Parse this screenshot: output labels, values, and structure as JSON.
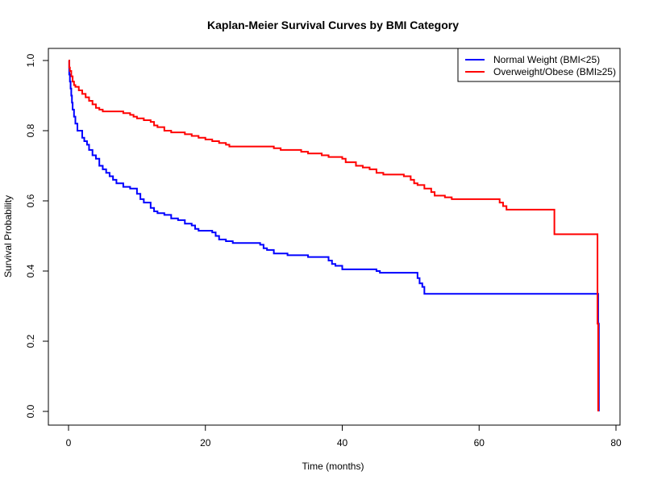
{
  "chart_data": {
    "type": "line",
    "step": true,
    "title": "Kaplan-Meier Survival Curves by BMI Category",
    "xlabel": "Time (months)",
    "ylabel": "Survival Probability",
    "xlim": [
      0,
      80
    ],
    "ylim": [
      0,
      1
    ],
    "x_ticks": [
      "0",
      "20",
      "40",
      "60",
      "80"
    ],
    "y_ticks": [
      "0.0",
      "0.2",
      "0.4",
      "0.6",
      "0.8",
      "1.0"
    ],
    "grid": false,
    "legend_position": "top-right",
    "series": [
      {
        "name": "Normal Weight (BMI<25)",
        "color": "#0000ff",
        "points": [
          [
            0,
            1.0
          ],
          [
            0.1,
            0.96
          ],
          [
            0.2,
            0.94
          ],
          [
            0.3,
            0.92
          ],
          [
            0.4,
            0.9
          ],
          [
            0.5,
            0.88
          ],
          [
            0.6,
            0.86
          ],
          [
            0.8,
            0.84
          ],
          [
            1,
            0.82
          ],
          [
            1.3,
            0.8
          ],
          [
            2,
            0.78
          ],
          [
            2.3,
            0.77
          ],
          [
            2.7,
            0.76
          ],
          [
            3,
            0.745
          ],
          [
            3.5,
            0.73
          ],
          [
            4,
            0.72
          ],
          [
            4.5,
            0.7
          ],
          [
            5,
            0.69
          ],
          [
            5.5,
            0.68
          ],
          [
            6,
            0.67
          ],
          [
            6.5,
            0.66
          ],
          [
            7,
            0.65
          ],
          [
            8,
            0.64
          ],
          [
            9,
            0.635
          ],
          [
            10,
            0.62
          ],
          [
            10.5,
            0.605
          ],
          [
            11,
            0.595
          ],
          [
            12,
            0.58
          ],
          [
            12.5,
            0.57
          ],
          [
            13,
            0.565
          ],
          [
            14,
            0.56
          ],
          [
            15,
            0.55
          ],
          [
            16,
            0.545
          ],
          [
            17,
            0.535
          ],
          [
            18,
            0.53
          ],
          [
            18.5,
            0.52
          ],
          [
            19,
            0.515
          ],
          [
            21,
            0.51
          ],
          [
            21.5,
            0.5
          ],
          [
            22,
            0.49
          ],
          [
            23,
            0.485
          ],
          [
            24,
            0.48
          ],
          [
            28,
            0.475
          ],
          [
            28.5,
            0.465
          ],
          [
            29,
            0.46
          ],
          [
            30,
            0.45
          ],
          [
            32,
            0.445
          ],
          [
            35,
            0.44
          ],
          [
            38,
            0.43
          ],
          [
            38.5,
            0.42
          ],
          [
            39,
            0.415
          ],
          [
            40,
            0.405
          ],
          [
            45,
            0.4
          ],
          [
            45.5,
            0.395
          ],
          [
            51,
            0.38
          ],
          [
            51.3,
            0.365
          ],
          [
            51.7,
            0.355
          ],
          [
            52,
            0.335
          ],
          [
            77.3,
            0.335
          ],
          [
            77.4,
            0.25
          ],
          [
            77.5,
            0.0
          ]
        ]
      },
      {
        "name": "Overweight/Obese (BMI≥25)",
        "color": "#ff0000",
        "points": [
          [
            0,
            1.0
          ],
          [
            0.1,
            0.98
          ],
          [
            0.2,
            0.97
          ],
          [
            0.4,
            0.955
          ],
          [
            0.6,
            0.94
          ],
          [
            0.8,
            0.93
          ],
          [
            1,
            0.925
          ],
          [
            1.5,
            0.915
          ],
          [
            2,
            0.905
          ],
          [
            2.5,
            0.895
          ],
          [
            3,
            0.885
          ],
          [
            3.5,
            0.875
          ],
          [
            4,
            0.865
          ],
          [
            4.5,
            0.86
          ],
          [
            5,
            0.855
          ],
          [
            8,
            0.85
          ],
          [
            9,
            0.845
          ],
          [
            9.5,
            0.84
          ],
          [
            10,
            0.835
          ],
          [
            11,
            0.83
          ],
          [
            12,
            0.825
          ],
          [
            12.5,
            0.815
          ],
          [
            13,
            0.81
          ],
          [
            14,
            0.8
          ],
          [
            15,
            0.795
          ],
          [
            17,
            0.79
          ],
          [
            18,
            0.785
          ],
          [
            19,
            0.78
          ],
          [
            20,
            0.775
          ],
          [
            21,
            0.77
          ],
          [
            22,
            0.765
          ],
          [
            23,
            0.76
          ],
          [
            23.5,
            0.755
          ],
          [
            30,
            0.75
          ],
          [
            31,
            0.745
          ],
          [
            34,
            0.74
          ],
          [
            35,
            0.735
          ],
          [
            37,
            0.73
          ],
          [
            38,
            0.725
          ],
          [
            40,
            0.72
          ],
          [
            40.5,
            0.71
          ],
          [
            42,
            0.7
          ],
          [
            43,
            0.695
          ],
          [
            44,
            0.69
          ],
          [
            45,
            0.68
          ],
          [
            46,
            0.675
          ],
          [
            49,
            0.67
          ],
          [
            50,
            0.66
          ],
          [
            50.5,
            0.65
          ],
          [
            51,
            0.645
          ],
          [
            52,
            0.635
          ],
          [
            53,
            0.625
          ],
          [
            53.5,
            0.615
          ],
          [
            55,
            0.61
          ],
          [
            56,
            0.605
          ],
          [
            63,
            0.595
          ],
          [
            63.5,
            0.585
          ],
          [
            64,
            0.575
          ],
          [
            71,
            0.505
          ],
          [
            77.2,
            0.505
          ],
          [
            77.3,
            0.25
          ],
          [
            77.4,
            0.0
          ]
        ]
      }
    ]
  }
}
